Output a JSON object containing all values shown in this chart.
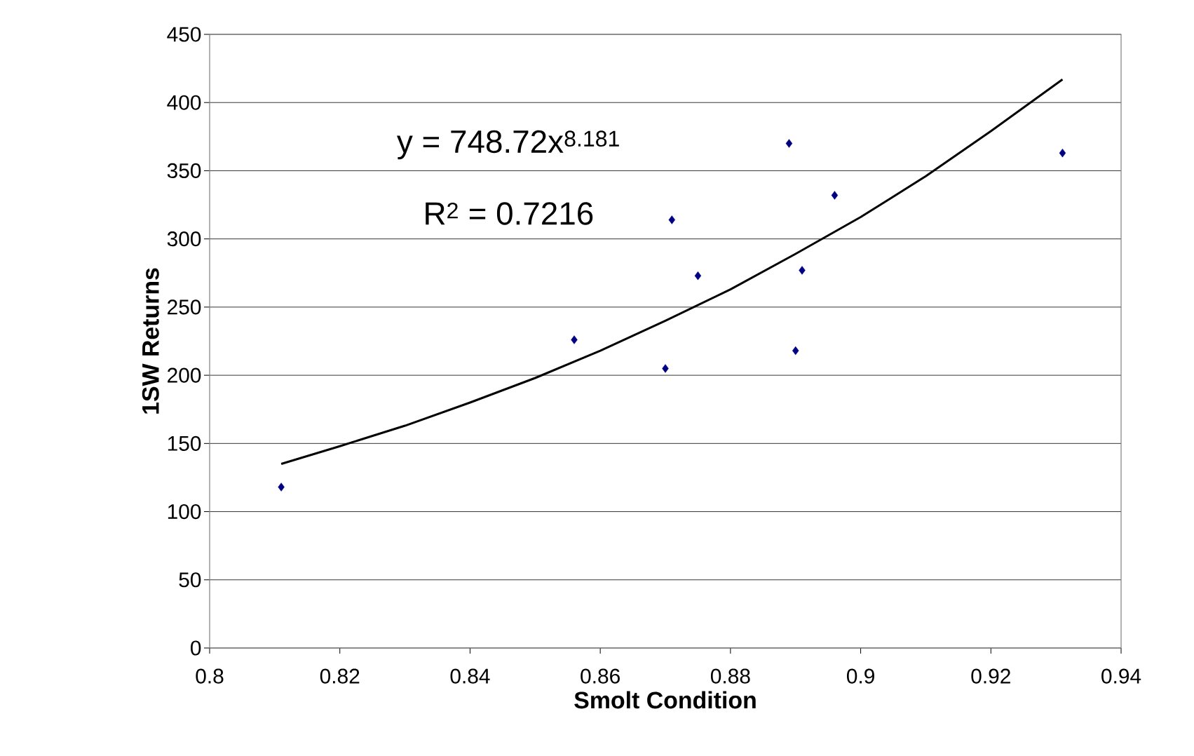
{
  "chart_data": {
    "type": "scatter",
    "xlabel": "Smolt Condition",
    "ylabel": "1SW Returns",
    "xlim": [
      0.8,
      0.94
    ],
    "xticks": [
      0.8,
      0.82,
      0.84,
      0.86,
      0.88,
      0.9,
      0.92,
      0.94
    ],
    "ylim": [
      0,
      450
    ],
    "yticks": [
      0,
      50,
      100,
      150,
      200,
      250,
      300,
      350,
      400,
      450
    ],
    "grid": "y",
    "marker": "diamond",
    "annotations": [
      "y = 748.72x$^{8.181}$",
      "R$^{2}$ = 0.7216"
    ],
    "series": [
      {
        "color": "#000080",
        "x": [
          0.811,
          0.856,
          0.87,
          0.871,
          0.875,
          0.889,
          0.89,
          0.891,
          0.896,
          0.931
        ],
        "values": [
          118,
          226,
          205,
          314,
          273,
          370,
          218,
          277,
          332,
          363
        ]
      },
      {
        "type": "line",
        "marker": "none",
        "line_style": "solid",
        "color": "#000000",
        "x": [
          0.811,
          0.82,
          0.83,
          0.84,
          0.85,
          0.86,
          0.87,
          0.88,
          0.89,
          0.9,
          0.91,
          0.92,
          0.931
        ],
        "values": [
          135,
          148,
          163,
          180,
          198,
          218,
          240,
          263,
          289,
          316,
          346,
          379,
          417
        ]
      }
    ]
  }
}
